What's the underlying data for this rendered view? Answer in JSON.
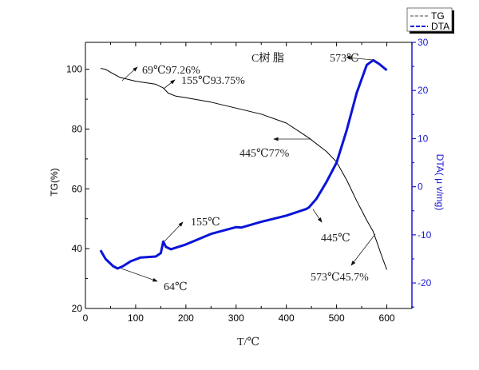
{
  "chart_data": {
    "type": "line",
    "title": "C树 脂",
    "xlabel": "T/℃",
    "ylabel_left": "TG(%)",
    "ylabel_right": "DTA( μ v/mg)",
    "xlim": [
      0,
      650
    ],
    "ylim_left": [
      20,
      109
    ],
    "ylim_right": [
      -25.3,
      30
    ],
    "x_ticks": [
      0,
      100,
      200,
      300,
      400,
      500,
      600
    ],
    "y_left_ticks": [
      20,
      40,
      60,
      80,
      100
    ],
    "y_right_ticks": [
      -20,
      -10,
      0,
      10,
      20,
      30
    ],
    "legend": {
      "position": "top-right",
      "entries": [
        "TG",
        "DTA"
      ]
    },
    "colors": {
      "TG": "#000000",
      "DTA": "#0a14d8",
      "right_axis": "#1a1ad0"
    },
    "series": [
      {
        "name": "TG",
        "axis": "left",
        "x": [
          30,
          40,
          50,
          69,
          100,
          140,
          155,
          165,
          180,
          200,
          250,
          300,
          350,
          400,
          445,
          480,
          500,
          520,
          540,
          560,
          573,
          590,
          600
        ],
        "y": [
          100.3,
          100,
          99,
          97.26,
          96,
          95,
          93.75,
          92,
          91,
          90.5,
          89,
          87,
          85,
          82,
          77,
          72.5,
          69,
          63,
          56,
          49.5,
          45.7,
          37.5,
          33
        ]
      },
      {
        "name": "DTA",
        "axis": "right",
        "x": [
          30,
          40,
          55,
          64,
          75,
          90,
          110,
          140,
          150,
          155,
          160,
          170,
          200,
          250,
          300,
          310,
          350,
          400,
          440,
          445,
          460,
          480,
          500,
          520,
          540,
          560,
          573,
          585,
          600
        ],
        "y": [
          -13.2,
          -15,
          -16.5,
          -17,
          -16.5,
          -15.5,
          -14.7,
          -14.5,
          -13.8,
          -11.4,
          -12.5,
          -13,
          -12,
          -9.8,
          -8.4,
          -8.5,
          -7.3,
          -6,
          -4.6,
          -4.3,
          -2.5,
          1,
          5,
          11.7,
          19.5,
          25.3,
          26.3,
          25.5,
          24.2
        ]
      }
    ],
    "annotations": [
      "69℃97.26%",
      "155℃93.75%",
      "573℃",
      "445℃77%",
      "155℃",
      "445℃",
      "573℃45.7%",
      "64℃"
    ]
  }
}
